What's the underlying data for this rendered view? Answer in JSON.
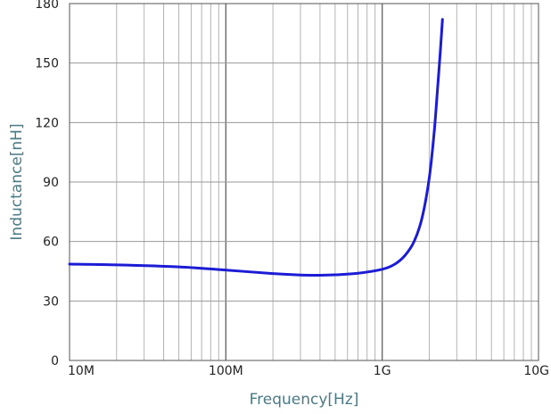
{
  "chart_data": {
    "type": "line",
    "xlabel": "Frequency[Hz]",
    "ylabel": "Inductance[nH]",
    "x_scale": "log",
    "xlim": [
      10000000,
      10000000000
    ],
    "ylim": [
      0,
      180
    ],
    "x_ticks": [
      {
        "value": 10000000,
        "label": "10M"
      },
      {
        "value": 100000000,
        "label": "100M"
      },
      {
        "value": 1000000000,
        "label": "1G"
      },
      {
        "value": 10000000000,
        "label": "10G"
      }
    ],
    "y_ticks": [
      {
        "value": 0,
        "label": "0"
      },
      {
        "value": 30,
        "label": "30"
      },
      {
        "value": 60,
        "label": "60"
      },
      {
        "value": 90,
        "label": "90"
      },
      {
        "value": 120,
        "label": "120"
      },
      {
        "value": 150,
        "label": "150"
      },
      {
        "value": 180,
        "label": "180"
      }
    ],
    "grid": true,
    "series": [
      {
        "color": "#1c1cd6",
        "points": [
          [
            10000000,
            48.6
          ],
          [
            20000000,
            48.2
          ],
          [
            50000000,
            47.2
          ],
          [
            100000000,
            45.6
          ],
          [
            200000000,
            43.8
          ],
          [
            300000000,
            43.1
          ],
          [
            400000000,
            43.0
          ],
          [
            500000000,
            43.2
          ],
          [
            700000000,
            44.0
          ],
          [
            1000000000,
            46.0
          ],
          [
            1200000000,
            48.5
          ],
          [
            1400000000,
            53.0
          ],
          [
            1600000000,
            60.0
          ],
          [
            1800000000,
            72.0
          ],
          [
            2000000000,
            92.0
          ],
          [
            2150000000,
            115.0
          ],
          [
            2250000000,
            135.0
          ],
          [
            2350000000,
            155.0
          ],
          [
            2430000000,
            172.0
          ]
        ]
      }
    ]
  }
}
